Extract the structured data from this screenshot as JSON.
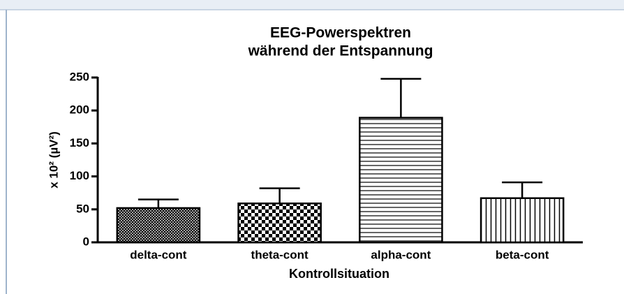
{
  "chart_data": {
    "type": "bar",
    "title": [
      "EEG-Powerspektren",
      "während der Entspannung"
    ],
    "ylabel": "x 10² (µV²)",
    "xlabel": "Kontrollsituation",
    "categories": [
      "delta-cont",
      "theta-cont",
      "alpha-cont",
      "beta-cont"
    ],
    "values": [
      52,
      59,
      189,
      67
    ],
    "errors": [
      13,
      23,
      59,
      24
    ],
    "ylim": [
      0,
      250
    ],
    "yticks": [
      0,
      50,
      100,
      150,
      200,
      250
    ]
  }
}
